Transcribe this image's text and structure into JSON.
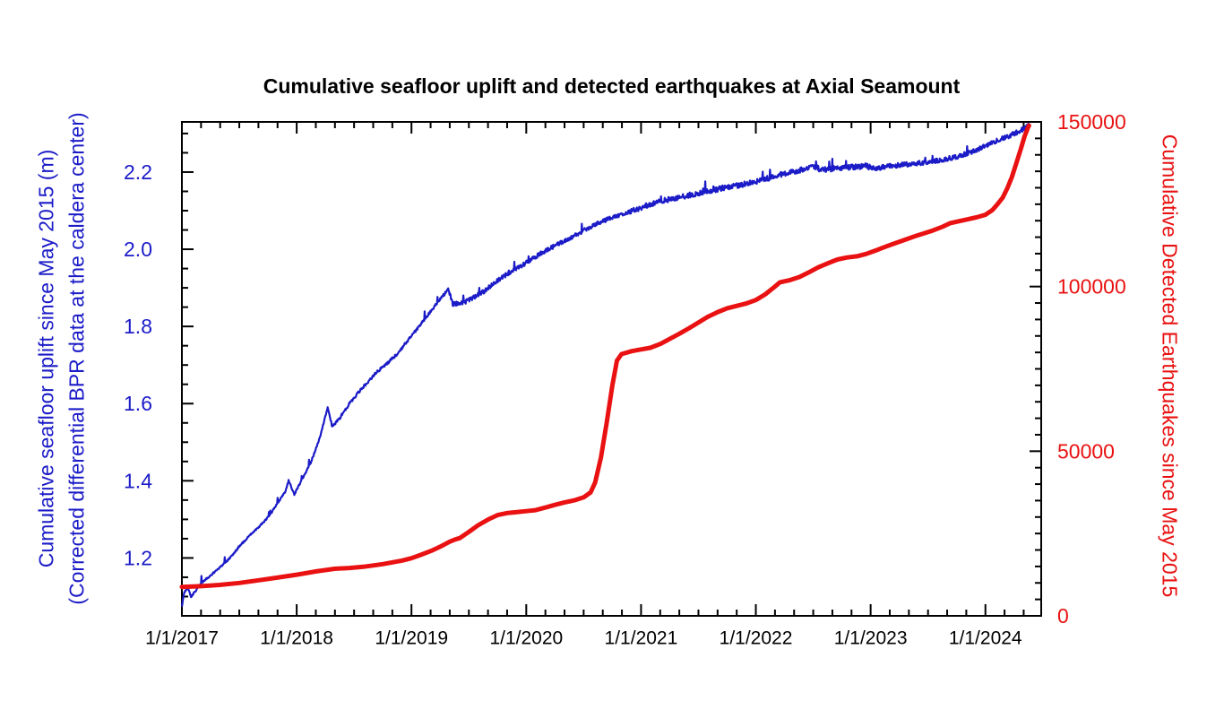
{
  "title": "Cumulative seafloor uplift and detected earthquakes at Axial Seamount",
  "colors": {
    "uplift_blue": "#1b1bc8",
    "earthquake_red": "#e91111",
    "axis_black": "#000000",
    "background": "#ffffff"
  },
  "axes": {
    "x": {
      "min_year": 2017.0,
      "max_year": 2024.486,
      "major_years": [
        2017,
        2018,
        2019,
        2020,
        2021,
        2022,
        2023,
        2024
      ],
      "tick_labels": [
        "1/1/2017",
        "1/1/2018",
        "1/1/2019",
        "1/1/2020",
        "1/1/2021",
        "1/1/2022",
        "1/1/2023",
        "1/1/2024"
      ],
      "minor_ticks_per_year": 5
    },
    "y_left": {
      "min": 1.05,
      "max": 2.33,
      "majors": [
        1.2,
        1.4,
        1.6,
        1.8,
        2.0,
        2.2
      ],
      "labels": [
        "1.2",
        "1.4",
        "1.6",
        "1.8",
        "2.0",
        "2.2"
      ],
      "minor_step": 0.05,
      "title_line1": "Cumulative seafloor uplift since May 2015 (m)",
      "title_line2": "(Corrected differential BPR data at the caldera center)",
      "color": "#1b1bc8"
    },
    "y_right": {
      "min": 0,
      "max": 150000,
      "majors": [
        0,
        50000,
        100000,
        150000
      ],
      "labels": [
        "0",
        "50000",
        "100000",
        "150000"
      ],
      "minor_step": 5000,
      "title": "Cumulative Detected Earthquakes since May 2015",
      "color": "#e91111"
    }
  },
  "chart_data": {
    "type": "line",
    "title": "Cumulative seafloor uplift and detected earthquakes at Axial Seamount",
    "x_unit": "decimal_year",
    "grid": false,
    "legend": "none",
    "axis_ranges": {
      "x": [
        2017.0,
        2024.486
      ],
      "y_left_uplift_m": [
        1.05,
        2.33
      ],
      "y_right_earthquakes": [
        0,
        150000
      ]
    },
    "series": [
      {
        "name": "Cumulative seafloor uplift since May 2015 (m)",
        "axis": "left",
        "color": "#1b1bc8",
        "style": "thin-noisy",
        "points": [
          [
            2017.0,
            1.075
          ],
          [
            2017.02,
            1.11
          ],
          [
            2017.05,
            1.125
          ],
          [
            2017.08,
            1.1
          ],
          [
            2017.12,
            1.115
          ],
          [
            2017.17,
            1.135
          ],
          [
            2017.25,
            1.155
          ],
          [
            2017.33,
            1.175
          ],
          [
            2017.42,
            1.2
          ],
          [
            2017.5,
            1.23
          ],
          [
            2017.58,
            1.255
          ],
          [
            2017.67,
            1.28
          ],
          [
            2017.75,
            1.305
          ],
          [
            2017.83,
            1.34
          ],
          [
            2017.9,
            1.372
          ],
          [
            2017.93,
            1.4
          ],
          [
            2017.98,
            1.365
          ],
          [
            2018.04,
            1.4
          ],
          [
            2018.12,
            1.445
          ],
          [
            2018.2,
            1.51
          ],
          [
            2018.27,
            1.59
          ],
          [
            2018.31,
            1.54
          ],
          [
            2018.38,
            1.565
          ],
          [
            2018.46,
            1.6
          ],
          [
            2018.54,
            1.63
          ],
          [
            2018.63,
            1.66
          ],
          [
            2018.71,
            1.685
          ],
          [
            2018.79,
            1.705
          ],
          [
            2018.88,
            1.73
          ],
          [
            2018.96,
            1.76
          ],
          [
            2019.04,
            1.79
          ],
          [
            2019.13,
            1.825
          ],
          [
            2019.21,
            1.855
          ],
          [
            2019.29,
            1.885
          ],
          [
            2019.32,
            1.9
          ],
          [
            2019.36,
            1.858
          ],
          [
            2019.46,
            1.862
          ],
          [
            2019.54,
            1.875
          ],
          [
            2019.63,
            1.89
          ],
          [
            2019.71,
            1.91
          ],
          [
            2019.79,
            1.928
          ],
          [
            2019.88,
            1.943
          ],
          [
            2019.96,
            1.958
          ],
          [
            2020.04,
            1.972
          ],
          [
            2020.13,
            1.99
          ],
          [
            2020.21,
            2.003
          ],
          [
            2020.29,
            2.015
          ],
          [
            2020.38,
            2.028
          ],
          [
            2020.46,
            2.042
          ],
          [
            2020.54,
            2.055
          ],
          [
            2020.63,
            2.068
          ],
          [
            2020.71,
            2.078
          ],
          [
            2020.79,
            2.086
          ],
          [
            2020.88,
            2.094
          ],
          [
            2020.96,
            2.103
          ],
          [
            2021.04,
            2.112
          ],
          [
            2021.17,
            2.124
          ],
          [
            2021.29,
            2.132
          ],
          [
            2021.42,
            2.14
          ],
          [
            2021.54,
            2.148
          ],
          [
            2021.67,
            2.156
          ],
          [
            2021.79,
            2.163
          ],
          [
            2021.92,
            2.17
          ],
          [
            2022.04,
            2.178
          ],
          [
            2022.17,
            2.19
          ],
          [
            2022.29,
            2.198
          ],
          [
            2022.42,
            2.208
          ],
          [
            2022.5,
            2.214
          ],
          [
            2022.58,
            2.206
          ],
          [
            2022.71,
            2.21
          ],
          [
            2022.83,
            2.213
          ],
          [
            2022.96,
            2.216
          ],
          [
            2023.04,
            2.208
          ],
          [
            2023.13,
            2.214
          ],
          [
            2023.25,
            2.218
          ],
          [
            2023.38,
            2.222
          ],
          [
            2023.5,
            2.226
          ],
          [
            2023.63,
            2.232
          ],
          [
            2023.75,
            2.24
          ],
          [
            2023.88,
            2.252
          ],
          [
            2023.96,
            2.262
          ],
          [
            2024.04,
            2.274
          ],
          [
            2024.13,
            2.285
          ],
          [
            2024.21,
            2.294
          ],
          [
            2024.29,
            2.305
          ],
          [
            2024.33,
            2.312
          ],
          [
            2024.36,
            2.318
          ],
          [
            2024.38,
            2.326
          ]
        ]
      },
      {
        "name": "Cumulative Detected Earthquakes since May 2015",
        "axis": "right",
        "color": "#e91111",
        "style": "thick-smooth",
        "points": [
          [
            2017.0,
            8800
          ],
          [
            2017.17,
            9000
          ],
          [
            2017.33,
            9400
          ],
          [
            2017.5,
            10000
          ],
          [
            2017.67,
            10800
          ],
          [
            2017.83,
            11600
          ],
          [
            2018.0,
            12500
          ],
          [
            2018.17,
            13500
          ],
          [
            2018.33,
            14300
          ],
          [
            2018.46,
            14550
          ],
          [
            2018.58,
            14900
          ],
          [
            2018.75,
            15700
          ],
          [
            2018.92,
            16800
          ],
          [
            2019.0,
            17500
          ],
          [
            2019.08,
            18500
          ],
          [
            2019.17,
            19700
          ],
          [
            2019.25,
            21000
          ],
          [
            2019.33,
            22500
          ],
          [
            2019.38,
            23200
          ],
          [
            2019.42,
            23600
          ],
          [
            2019.5,
            25500
          ],
          [
            2019.58,
            27500
          ],
          [
            2019.67,
            29300
          ],
          [
            2019.75,
            30600
          ],
          [
            2019.83,
            31200
          ],
          [
            2019.92,
            31500
          ],
          [
            2020.0,
            31800
          ],
          [
            2020.08,
            32100
          ],
          [
            2020.17,
            32900
          ],
          [
            2020.25,
            33700
          ],
          [
            2020.33,
            34400
          ],
          [
            2020.42,
            35100
          ],
          [
            2020.5,
            36000
          ],
          [
            2020.56,
            37500
          ],
          [
            2020.6,
            40500
          ],
          [
            2020.65,
            48000
          ],
          [
            2020.7,
            58500
          ],
          [
            2020.75,
            70000
          ],
          [
            2020.79,
            77500
          ],
          [
            2020.83,
            79500
          ],
          [
            2020.92,
            80400
          ],
          [
            2021.0,
            80900
          ],
          [
            2021.08,
            81400
          ],
          [
            2021.17,
            82600
          ],
          [
            2021.25,
            84100
          ],
          [
            2021.33,
            85600
          ],
          [
            2021.42,
            87400
          ],
          [
            2021.5,
            89100
          ],
          [
            2021.58,
            90800
          ],
          [
            2021.67,
            92300
          ],
          [
            2021.75,
            93400
          ],
          [
            2021.83,
            94100
          ],
          [
            2021.92,
            94900
          ],
          [
            2022.0,
            95900
          ],
          [
            2022.08,
            97600
          ],
          [
            2022.17,
            100100
          ],
          [
            2022.21,
            101300
          ],
          [
            2022.29,
            101900
          ],
          [
            2022.38,
            102900
          ],
          [
            2022.46,
            104300
          ],
          [
            2022.54,
            105800
          ],
          [
            2022.63,
            107100
          ],
          [
            2022.71,
            108200
          ],
          [
            2022.79,
            108800
          ],
          [
            2022.88,
            109200
          ],
          [
            2022.96,
            109900
          ],
          [
            2023.04,
            110900
          ],
          [
            2023.13,
            112100
          ],
          [
            2023.21,
            113100
          ],
          [
            2023.29,
            114100
          ],
          [
            2023.38,
            115200
          ],
          [
            2023.46,
            116100
          ],
          [
            2023.54,
            117000
          ],
          [
            2023.63,
            118200
          ],
          [
            2023.69,
            119200
          ],
          [
            2023.75,
            119700
          ],
          [
            2023.83,
            120300
          ],
          [
            2023.92,
            121000
          ],
          [
            2024.0,
            121800
          ],
          [
            2024.06,
            123200
          ],
          [
            2024.1,
            124800
          ],
          [
            2024.15,
            127000
          ],
          [
            2024.19,
            129800
          ],
          [
            2024.23,
            133200
          ],
          [
            2024.27,
            137500
          ],
          [
            2024.31,
            142000
          ],
          [
            2024.34,
            145500
          ],
          [
            2024.37,
            148200
          ],
          [
            2024.38,
            148900
          ]
        ]
      }
    ]
  }
}
